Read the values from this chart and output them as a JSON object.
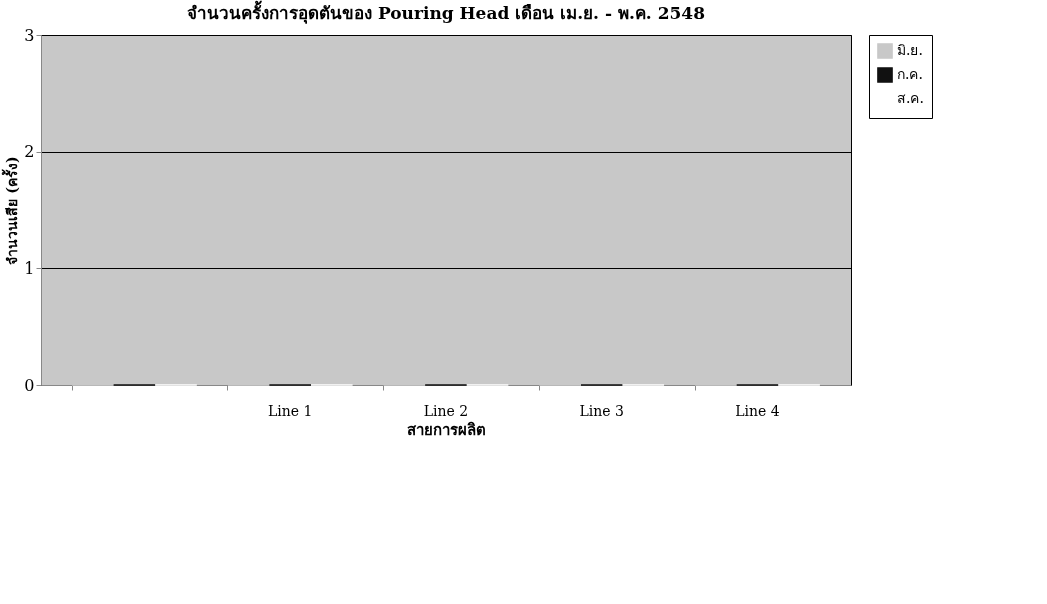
{
  "chart_data": {
    "type": "bar",
    "title": "จำนวนครั้งการอุดตันของ Pouring Head เดือน เม.ย. - พ.ค. 2548",
    "xlabel": "สายการผลิต",
    "ylabel": "จำนวนเสีย (ครั้ง)",
    "categories": [
      null,
      "Line 1",
      "Line 2",
      "Line 3",
      "Line 4"
    ],
    "series": [
      {
        "name": "มิ.ย.",
        "color": "#c8c8c8",
        "values": [
          0,
          0,
          0,
          0,
          0
        ]
      },
      {
        "name": "ก.ค.",
        "color": "#111111",
        "values": [
          0,
          0,
          0,
          0,
          0
        ]
      },
      {
        "name": "ส.ค.",
        "color": "#ffffff",
        "values": [
          0,
          0,
          0,
          0,
          0
        ]
      }
    ],
    "ylim": [
      0,
      3
    ],
    "yticks": [
      0,
      1,
      2,
      3
    ],
    "grid": "y",
    "legend": "right"
  }
}
